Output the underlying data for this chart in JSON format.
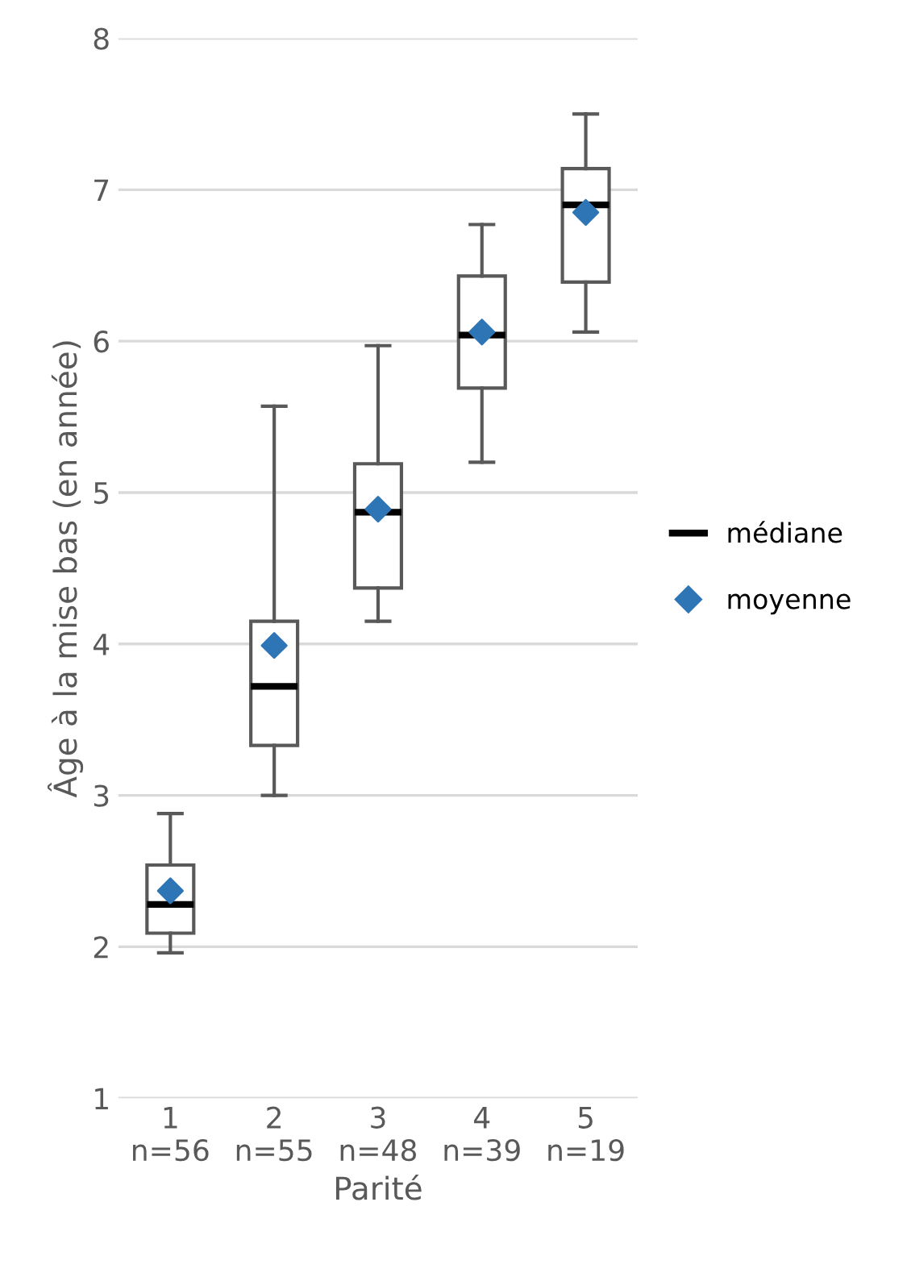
{
  "chart_data": {
    "type": "box",
    "xlabel": "Parité",
    "ylabel": "Âge à la mise bas (en année)",
    "categories": [
      "1\nn=56",
      "2\nn=55",
      "3\nn=48",
      "4\nn=39",
      "5\nn=19"
    ],
    "ylim": [
      1,
      8
    ],
    "yticks": [
      1,
      2,
      3,
      4,
      5,
      6,
      7,
      8
    ],
    "grid": "y",
    "legend": "right",
    "series": [
      {
        "name": "médiane",
        "boxes": [
          {
            "low": 1.96,
            "q1": 2.09,
            "median": 2.28,
            "q3": 2.54,
            "high": 2.88
          },
          {
            "low": 3.0,
            "q1": 3.33,
            "median": 3.72,
            "q3": 4.15,
            "high": 5.57
          },
          {
            "low": 4.15,
            "q1": 4.37,
            "median": 4.87,
            "q3": 5.19,
            "high": 5.97
          },
          {
            "low": 5.2,
            "q1": 5.69,
            "median": 6.04,
            "q3": 6.43,
            "high": 6.77
          },
          {
            "low": 6.06,
            "q1": 6.39,
            "median": 6.9,
            "q3": 7.14,
            "high": 7.5
          }
        ]
      },
      {
        "name": "moyenne",
        "type": "scatter",
        "marker": "diamond",
        "color": "#2e75b6",
        "x": [
          "1\nn=56",
          "2\nn=55",
          "3\nn=48",
          "4\nn=39",
          "5\nn=19"
        ],
        "values": [
          2.37,
          3.99,
          4.89,
          6.06,
          6.85
        ]
      }
    ]
  }
}
